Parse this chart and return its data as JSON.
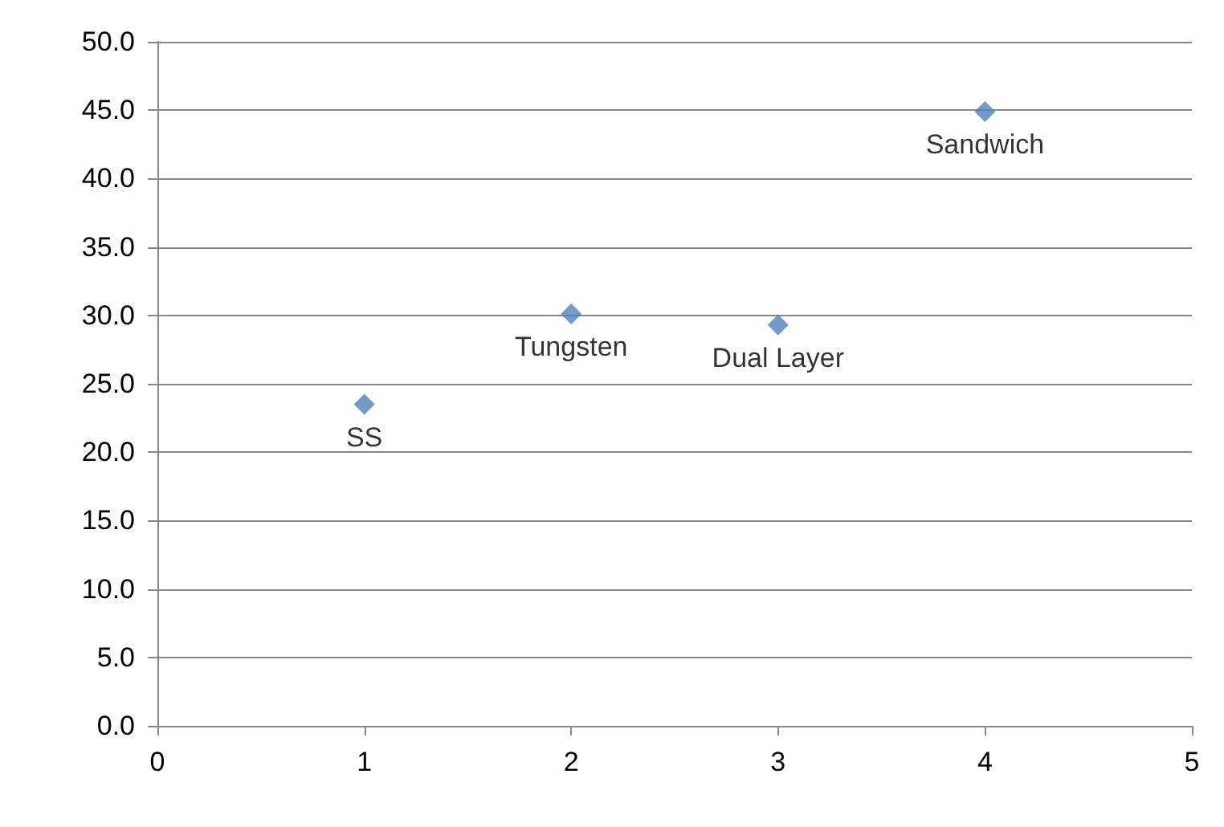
{
  "chart_data": {
    "type": "scatter",
    "x": [
      1,
      2,
      3,
      4
    ],
    "series": [
      {
        "color": "#4f81bd",
        "values": [
          23.5,
          30.1,
          29.3,
          44.9
        ]
      }
    ],
    "xlim": [
      0,
      5
    ],
    "xticks": [
      0,
      1,
      2,
      3,
      4,
      5
    ],
    "ylim": [
      0,
      50
    ],
    "yticks": [
      {
        "value": 0,
        "label": "0.0"
      },
      {
        "value": 5,
        "label": "5.0"
      },
      {
        "value": 10,
        "label": "10.0"
      },
      {
        "value": 15,
        "label": "15.0"
      },
      {
        "value": 20,
        "label": "20.0"
      },
      {
        "value": 25,
        "label": "25.0"
      },
      {
        "value": 30,
        "label": "30.0"
      },
      {
        "value": 35,
        "label": "35.0"
      },
      {
        "value": 40,
        "label": "40.0"
      },
      {
        "value": 45,
        "label": "45.0"
      },
      {
        "value": 50,
        "label": "50.0"
      }
    ],
    "grid": "y",
    "marker": "diamond",
    "annotations": [
      {
        "text": "SS",
        "x": 1,
        "y": 23.5
      },
      {
        "text": "Tungsten",
        "x": 2,
        "y": 30.1
      },
      {
        "text": "Dual Layer",
        "x": 3,
        "y": 29.3
      },
      {
        "text": "Sandwich",
        "x": 4,
        "y": 44.9
      }
    ]
  }
}
